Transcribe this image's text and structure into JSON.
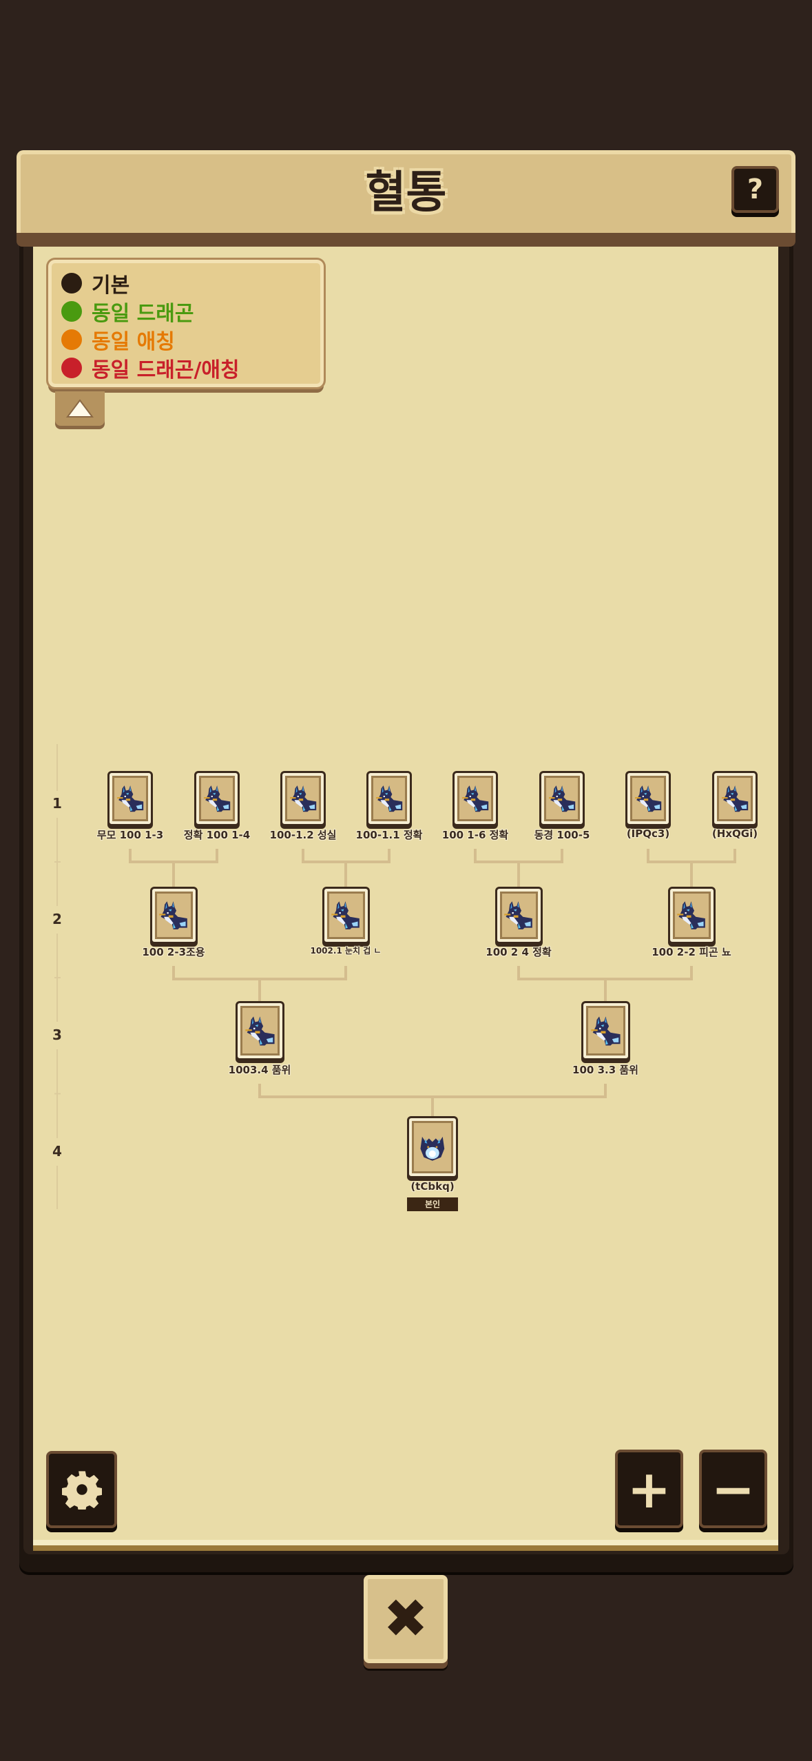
{
  "header": {
    "title": "혈통",
    "help_label": "?"
  },
  "legend": {
    "items": [
      {
        "label": "기본",
        "color": "#2b1d12"
      },
      {
        "label": "동일 드래곤",
        "color": "#4a9a10"
      },
      {
        "label": "동일 애칭",
        "color": "#e57a05"
      },
      {
        "label": "동일 드래곤/애칭",
        "color": "#c8202a"
      }
    ],
    "collapse_icon": "triangle-up"
  },
  "generations": [
    {
      "label": "1",
      "nodes": [
        {
          "name": "무모 100 1-3"
        },
        {
          "name": "정확 100 1-4"
        },
        {
          "name": "100-1.2 성실"
        },
        {
          "name": "100-1.1 정확"
        },
        {
          "name": "100 1-6 정확"
        },
        {
          "name": "동경 100-5"
        },
        {
          "name": "(IPQc3)"
        },
        {
          "name": "(HxQGi)"
        }
      ]
    },
    {
      "label": "2",
      "nodes": [
        {
          "name": "100 2-3조용"
        },
        {
          "name": "1002.1 눈치 겁 ㄴ"
        },
        {
          "name": "100 2 4 정확"
        },
        {
          "name": "100 2-2 피곤 뇨"
        }
      ]
    },
    {
      "label": "3",
      "nodes": [
        {
          "name": "1003.4 품위"
        },
        {
          "name": "100 3.3 품위"
        }
      ]
    },
    {
      "label": "4",
      "nodes": [
        {
          "name": "(tCbkq)",
          "badge": "본인"
        }
      ]
    }
  ],
  "controls": {
    "settings_icon": "gear",
    "zoom_in_label": "+",
    "zoom_out_label": "−",
    "close_label": "✖"
  }
}
